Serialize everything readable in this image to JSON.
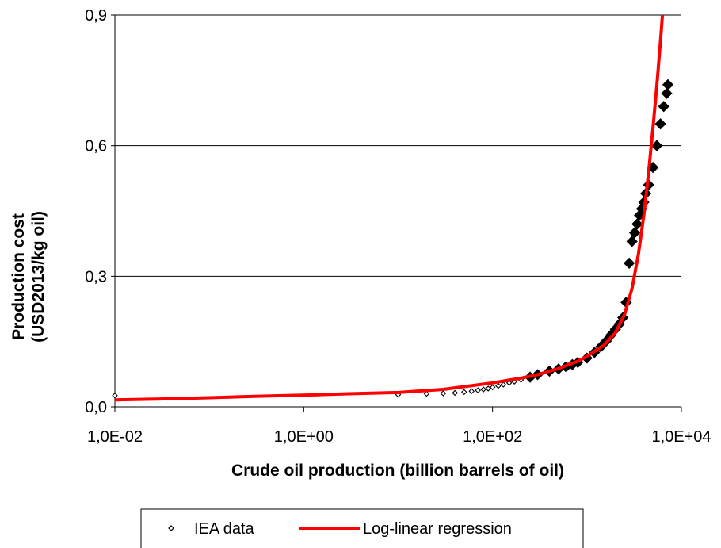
{
  "chart_data": {
    "type": "scatter",
    "title": "",
    "xlabel": "Crude oil production (billion barrels of oil)",
    "ylabel_line1": "Production cost",
    "ylabel_line2": "(USD2013/kg oil)",
    "x_scale": "log",
    "xlim": [
      0.01,
      10000
    ],
    "ylim": [
      0,
      0.9
    ],
    "x_ticks": [
      {
        "value": 0.01,
        "label": "1,0E-02"
      },
      {
        "value": 1,
        "label": "1,0E+00"
      },
      {
        "value": 100,
        "label": "1,0E+02"
      },
      {
        "value": 10000,
        "label": "1,0E+04"
      }
    ],
    "y_ticks": [
      {
        "value": 0,
        "label": "0,0"
      },
      {
        "value": 0.3,
        "label": "0,3"
      },
      {
        "value": 0.6,
        "label": "0,6"
      },
      {
        "value": 0.9,
        "label": "0,9"
      }
    ],
    "grid": "horizontal major gridlines",
    "legend_position": "bottom",
    "colors": {
      "iea": "#000000",
      "regression": "#ff0000"
    },
    "series": [
      {
        "name": "IEA data",
        "marker": "diamond-open",
        "x": [
          0.01,
          10,
          20,
          30,
          40,
          50,
          60,
          70,
          80,
          90,
          100,
          115,
          130,
          150,
          170,
          200,
          250,
          300,
          400,
          500,
          600,
          700,
          800,
          1000,
          1200,
          1400,
          1600,
          1800,
          2000,
          2200,
          2400,
          2600,
          2800,
          3000,
          3200,
          3400,
          3600,
          3800,
          4000,
          4200,
          4500,
          5000,
          5500,
          6000,
          6500,
          7000,
          7200
        ],
        "y": [
          0.026,
          0.028,
          0.03,
          0.031,
          0.032,
          0.034,
          0.036,
          0.038,
          0.04,
          0.042,
          0.045,
          0.048,
          0.051,
          0.055,
          0.058,
          0.062,
          0.068,
          0.074,
          0.082,
          0.087,
          0.092,
          0.097,
          0.102,
          0.112,
          0.125,
          0.138,
          0.151,
          0.165,
          0.178,
          0.19,
          0.205,
          0.24,
          0.33,
          0.38,
          0.4,
          0.42,
          0.44,
          0.455,
          0.47,
          0.49,
          0.51,
          0.55,
          0.6,
          0.65,
          0.69,
          0.72,
          0.74
        ]
      },
      {
        "name": "Log-linear regression",
        "marker": "line",
        "x": [
          0.01,
          0.03,
          0.1,
          0.3,
          1,
          3,
          10,
          30,
          100,
          200,
          300,
          500,
          800,
          1000,
          1500,
          2000,
          2500,
          3000,
          3500,
          4000,
          4500,
          5000,
          5500,
          6000,
          6300
        ],
        "y": [
          0.016,
          0.018,
          0.021,
          0.024,
          0.027,
          0.03,
          0.033,
          0.04,
          0.055,
          0.066,
          0.074,
          0.088,
          0.105,
          0.116,
          0.141,
          0.17,
          0.212,
          0.272,
          0.35,
          0.44,
          0.54,
          0.64,
          0.74,
          0.84,
          0.9
        ]
      }
    ]
  }
}
